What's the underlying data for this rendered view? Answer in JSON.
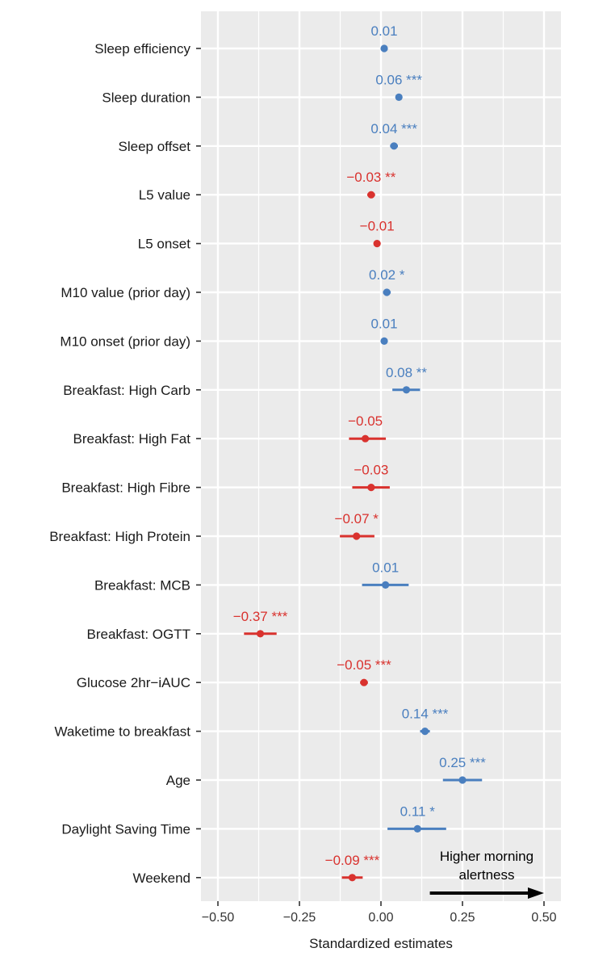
{
  "chart_data": {
    "type": "forest",
    "xlabel": "Standardized estimates",
    "xlim": [
      -0.55,
      0.52
    ],
    "xticks": [
      -0.5,
      -0.25,
      0.0,
      0.25,
      0.5
    ],
    "xtick_labels": [
      "−0.50",
      "−0.25",
      "0.00",
      "0.25",
      "0.50"
    ],
    "grid": true,
    "colors": {
      "positive": "#4a7fbf",
      "negative": "#d9322e",
      "panel": "#ebebeb",
      "grid": "#ffffff"
    },
    "annotation": {
      "line1": "Higher morning",
      "line2": "alertness",
      "arrow_from": 0.15,
      "arrow_to": 0.5
    },
    "rows": [
      {
        "label": "Sleep efficiency",
        "estimate": 0.01,
        "lo": 0.005,
        "hi": 0.015,
        "text": "0.01",
        "sign": "positive"
      },
      {
        "label": "Sleep duration",
        "estimate": 0.055,
        "lo": 0.045,
        "hi": 0.065,
        "text": "0.06 ***",
        "sign": "positive"
      },
      {
        "label": "Sleep offset",
        "estimate": 0.04,
        "lo": 0.028,
        "hi": 0.052,
        "text": "0.04 ***",
        "sign": "positive"
      },
      {
        "label": "L5 value",
        "estimate": -0.03,
        "lo": -0.042,
        "hi": -0.018,
        "text": "−0.03 **",
        "sign": "negative"
      },
      {
        "label": "L5 onset",
        "estimate": -0.012,
        "lo": -0.022,
        "hi": -0.002,
        "text": "−0.01",
        "sign": "negative"
      },
      {
        "label": "M10 value (prior day)",
        "estimate": 0.018,
        "lo": 0.006,
        "hi": 0.03,
        "text": "0.02 *",
        "sign": "positive"
      },
      {
        "label": "M10 onset (prior day)",
        "estimate": 0.01,
        "lo": 0.0,
        "hi": 0.02,
        "text": "0.01",
        "sign": "positive"
      },
      {
        "label": "Breakfast: High Carb",
        "estimate": 0.078,
        "lo": 0.035,
        "hi": 0.12,
        "text": "0.08 **",
        "sign": "positive"
      },
      {
        "label": "Breakfast: High Fat",
        "estimate": -0.048,
        "lo": -0.098,
        "hi": 0.015,
        "text": "−0.05",
        "sign": "negative"
      },
      {
        "label": "Breakfast: High Fibre",
        "estimate": -0.03,
        "lo": -0.088,
        "hi": 0.027,
        "text": "−0.03",
        "sign": "negative"
      },
      {
        "label": "Breakfast: High Protein",
        "estimate": -0.075,
        "lo": -0.126,
        "hi": -0.02,
        "text": "−0.07 *",
        "sign": "negative"
      },
      {
        "label": "Breakfast: MCB",
        "estimate": 0.014,
        "lo": -0.058,
        "hi": 0.085,
        "text": "0.01",
        "sign": "positive"
      },
      {
        "label": "Breakfast: OGTT",
        "estimate": -0.37,
        "lo": -0.42,
        "hi": -0.32,
        "text": "−0.37 ***",
        "sign": "negative"
      },
      {
        "label": "Glucose 2hr−iAUC",
        "estimate": -0.052,
        "lo": -0.064,
        "hi": -0.04,
        "text": "−0.05 ***",
        "sign": "negative"
      },
      {
        "label": "Waketime to breakfast",
        "estimate": 0.135,
        "lo": 0.12,
        "hi": 0.15,
        "text": "0.14 ***",
        "sign": "positive"
      },
      {
        "label": "Age",
        "estimate": 0.25,
        "lo": 0.19,
        "hi": 0.31,
        "text": "0.25 ***",
        "sign": "positive"
      },
      {
        "label": "Daylight Saving Time",
        "estimate": 0.112,
        "lo": 0.02,
        "hi": 0.2,
        "text": "0.11 *",
        "sign": "positive"
      },
      {
        "label": "Weekend",
        "estimate": -0.088,
        "lo": -0.12,
        "hi": -0.056,
        "text": "−0.09 ***",
        "sign": "negative"
      }
    ]
  }
}
